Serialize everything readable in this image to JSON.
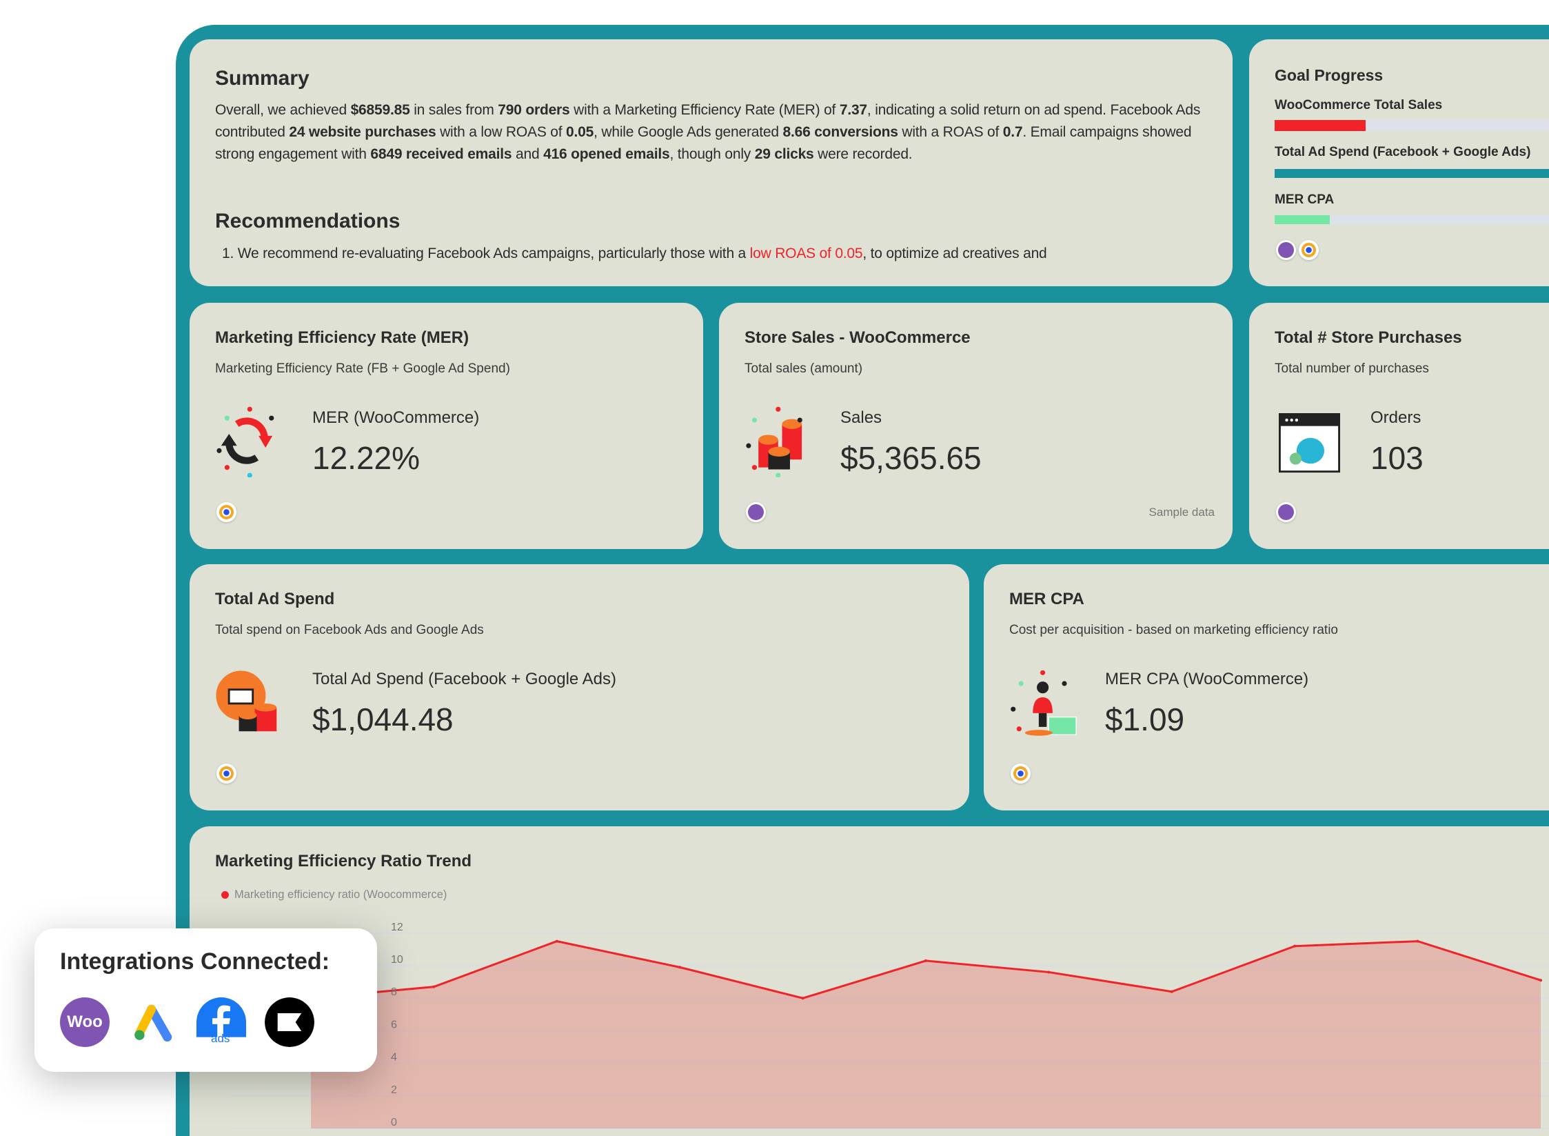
{
  "summary": {
    "title": "Summary",
    "p": [
      {
        "t": "Overall, we achieved "
      },
      {
        "b": "$6859.85"
      },
      {
        "t": " in sales from "
      },
      {
        "b": "790 orders"
      },
      {
        "t": " with a Marketing Efficiency Rate (MER) of "
      },
      {
        "b": "7.37"
      },
      {
        "t": ", indicating a solid return on ad spend. Facebook Ads contributed "
      },
      {
        "b": "24 website purchases"
      },
      {
        "t": " with a low ROAS of "
      },
      {
        "b": "0.05"
      },
      {
        "t": ", while Google Ads generated "
      },
      {
        "b": "8.66 conversions"
      },
      {
        "t": " with a ROAS of "
      },
      {
        "b": "0.7"
      },
      {
        "t": ". Email campaigns showed strong engagement with "
      },
      {
        "b": "6849 received emails"
      },
      {
        "t": " and "
      },
      {
        "b": "416 opened emails"
      },
      {
        "t": ", though only "
      },
      {
        "b": "29 clicks"
      },
      {
        "t": " were recorded."
      }
    ],
    "rec_title": "Recommendations",
    "rec_1_a": "1. We recommend re-evaluating Facebook Ads campaigns, particularly those with a ",
    "rec_1_hl": "low ROAS of 0.05",
    "rec_1_b": ", to optimize ad creatives and"
  },
  "goal": {
    "title": "Goal Progress",
    "items": [
      {
        "label": "WooCommerce Total Sales",
        "progress": 0.33,
        "color": "#f02428"
      },
      {
        "label": "Total Ad Spend (Facebook + Google Ads)",
        "progress": 1.0,
        "color": "#1a929e"
      },
      {
        "label": "MER CPA",
        "progress": 0.2,
        "color": "#74e6a6"
      }
    ]
  },
  "cards": {
    "mer": {
      "title": "Marketing Efficiency Rate (MER)",
      "subtitle": "Marketing Efficiency Rate (FB + Google Ad Spend)",
      "label": "MER (WooCommerce)",
      "value": "12.22%"
    },
    "sales": {
      "title": "Store Sales - WooCommerce",
      "subtitle": "Total sales (amount)",
      "label": "Sales",
      "value": "$5,365.65",
      "note": "Sample data"
    },
    "purchases": {
      "title": "Total # Store Purchases",
      "subtitle": "Total number of purchases",
      "label": "Orders",
      "value": "103"
    },
    "adspend": {
      "title": "Total Ad Spend",
      "subtitle": "Total spend on Facebook Ads and Google Ads",
      "label": "Total Ad Spend (Facebook + Google Ads)",
      "value": "$1,044.48"
    },
    "mercpa": {
      "title": "MER CPA",
      "subtitle": "Cost per acquisition - based on marketing efficiency ratio",
      "label": "MER CPA (WooCommerce)",
      "value": "$1.09"
    }
  },
  "chart_data": {
    "type": "area",
    "title": "Marketing Efficiency Ratio Trend",
    "series": [
      {
        "name": "Marketing efficiency ratio (Woocommerce)",
        "color": "#f02428",
        "values": [
          8.0,
          8.7,
          11.5,
          9.9,
          8.0,
          10.3,
          9.6,
          8.4,
          11.2,
          11.5,
          9.1
        ]
      }
    ],
    "ylim": [
      0,
      12
    ],
    "yticks": [
      "0",
      "2",
      "4",
      "6",
      "8",
      "10",
      "12"
    ],
    "grid": true,
    "legend": "top-left"
  },
  "integrations": {
    "title": "Integrations Connected:",
    "items": [
      {
        "name": "woocommerce",
        "text": "Woo"
      },
      {
        "name": "google-ads"
      },
      {
        "name": "facebook-ads",
        "text": "ads"
      },
      {
        "name": "klaviyo"
      }
    ]
  }
}
